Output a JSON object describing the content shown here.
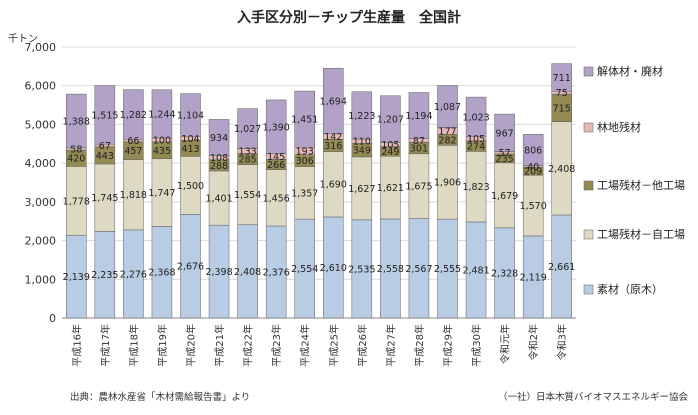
{
  "chart_data": {
    "type": "bar",
    "stacked": true,
    "title": "入手区分別－チップ生産量　全国計",
    "unit_label": "千トン",
    "ylim": [
      0,
      7000
    ],
    "yticks": [
      "0",
      "1,000",
      "2,000",
      "3,000",
      "4,000",
      "5,000",
      "6,000",
      "7,000"
    ],
    "grid": true,
    "legend_position": "right",
    "categories": [
      "平成16年",
      "平成17年",
      "平成18年",
      "平成19年",
      "平成20年",
      "平成21年",
      "平成22年",
      "平成23年",
      "平成24年",
      "平成25年",
      "平成26年",
      "平成27年",
      "平成28年",
      "平成29年",
      "平成30年",
      "令和元年",
      "令和2年",
      "令和3年"
    ],
    "series": [
      {
        "name": "素材（原木）",
        "color": "#b8cce4",
        "values": [
          2139,
          2235,
          2276,
          2368,
          2676,
          2398,
          2408,
          2376,
          2554,
          2610,
          2535,
          2558,
          2567,
          2555,
          2481,
          2328,
          2119,
          2661
        ]
      },
      {
        "name": "工場残材－自工場",
        "color": "#ddd9c3",
        "values": [
          1778,
          1745,
          1818,
          1747,
          1500,
          1401,
          1554,
          1456,
          1357,
          1690,
          1627,
          1621,
          1675,
          1906,
          1823,
          1679,
          1570,
          2408
        ]
      },
      {
        "name": "工場残材－他工場",
        "color": "#948a54",
        "values": [
          420,
          443,
          457,
          435,
          413,
          288,
          285,
          266,
          306,
          316,
          349,
          249,
          301,
          282,
          274,
          235,
          209,
          715
        ]
      },
      {
        "name": "林地残材",
        "color": "#e6b9b8",
        "values": [
          58,
          67,
          66,
          100,
          104,
          108,
          133,
          145,
          193,
          142,
          110,
          105,
          87,
          177,
          105,
          57,
          40,
          75
        ]
      },
      {
        "name": "解体材・廃材",
        "color": "#b3a2c7",
        "values": [
          1388,
          1515,
          1282,
          1244,
          1104,
          934,
          1027,
          1390,
          1451,
          1694,
          1223,
          1207,
          1194,
          1087,
          1023,
          967,
          806,
          711
        ]
      }
    ],
    "data_labels": [
      [
        "2,139",
        "2,235",
        "2,276",
        "2,368",
        "2,676",
        "2,398",
        "2,408",
        "2,376",
        "2,554",
        "2,610",
        "2,535",
        "2,558",
        "2,567",
        "2,555",
        "2,481",
        "2,328",
        "2,119",
        "2,661"
      ],
      [
        "1,778",
        "1,745",
        "1,818",
        "1,747",
        "1,500",
        "1,401",
        "1,554",
        "1,456",
        "1,357",
        "1,690",
        "1,627",
        "1,621",
        "1,675",
        "1,906",
        "1,823",
        "1,679",
        "1,570",
        "2,408"
      ],
      [
        "420",
        "443",
        "457",
        "435",
        "413",
        "288",
        "285",
        "266",
        "306",
        "316",
        "349",
        "249",
        "301",
        "282",
        "274",
        "235",
        "209",
        "715"
      ],
      [
        "58",
        "67",
        "66",
        "100",
        "104",
        "108",
        "133",
        "145",
        "193",
        "142",
        "110",
        "105",
        "87",
        "177",
        "105",
        "57",
        "40",
        "75"
      ],
      [
        "1,388",
        "1,515",
        "1,282",
        "1,244",
        "1,104",
        "934",
        "1,027",
        "1,390",
        "1,451",
        "1,694",
        "1,223",
        "1,207",
        "1,194",
        "1,087",
        "1,023",
        "967",
        "806",
        "711"
      ]
    ],
    "legend_order": [
      4,
      3,
      2,
      1,
      0
    ]
  },
  "footer": {
    "source": "出典：農林水産省「木材需給報告書」より",
    "credit": "（一社）日本木質バイオマスエネルギー協会"
  }
}
